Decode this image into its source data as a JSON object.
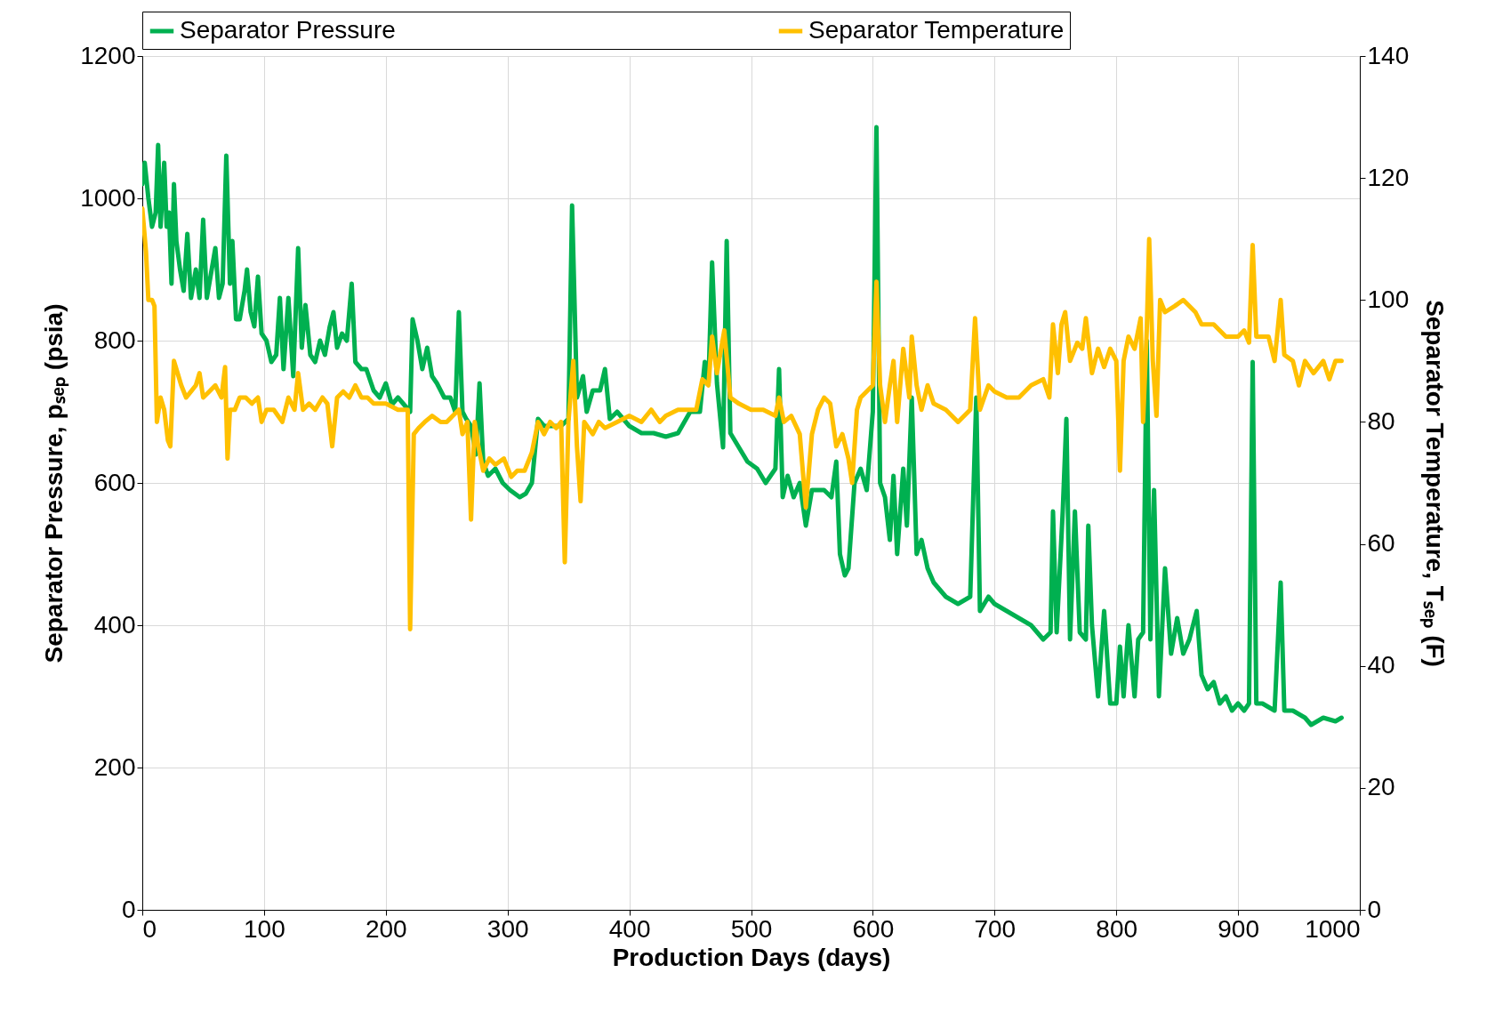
{
  "chart_data": {
    "type": "line",
    "xlabel": "Production Days (days)",
    "ylabel": "Separator Pressure, pₛₑₚ (psia)",
    "y2label": "Separator Temperature, Tₛₑₚ (F)",
    "xlim": [
      0,
      1000
    ],
    "xticks": [
      0,
      100,
      200,
      300,
      400,
      500,
      600,
      700,
      800,
      900,
      1000
    ],
    "ylim": [
      0,
      1200
    ],
    "yticks": [
      0,
      200,
      400,
      600,
      800,
      1000,
      1200
    ],
    "y2lim": [
      0,
      140
    ],
    "y2ticks": [
      0,
      20,
      40,
      60,
      80,
      100,
      120,
      140
    ],
    "grid": true,
    "legend": "top",
    "line_style": "solid",
    "marker": "none",
    "series": [
      {
        "name": "Separator Pressure",
        "color": "#00b050",
        "x": [
          0,
          2,
          5,
          8,
          11,
          13,
          15,
          18,
          20,
          22,
          24,
          26,
          28,
          31,
          34,
          37,
          40,
          44,
          47,
          50,
          53,
          57,
          60,
          63,
          66,
          69,
          72,
          74,
          77,
          80,
          84,
          86,
          89,
          92,
          95,
          98,
          102,
          106,
          110,
          113,
          116,
          120,
          124,
          128,
          131,
          134,
          138,
          142,
          146,
          150,
          154,
          157,
          160,
          164,
          168,
          172,
          175,
          180,
          184,
          190,
          195,
          200,
          205,
          210,
          215,
          220,
          222,
          226,
          230,
          234,
          238,
          242,
          248,
          253,
          257,
          260,
          263,
          266,
          270,
          274,
          277,
          280,
          284,
          290,
          296,
          302,
          310,
          315,
          320,
          325,
          330,
          338,
          344,
          350,
          353,
          357,
          362,
          365,
          370,
          376,
          380,
          384,
          390,
          400,
          410,
          420,
          430,
          440,
          450,
          458,
          462,
          465,
          468,
          472,
          477,
          480,
          483,
          490,
          497,
          505,
          512,
          520,
          523,
          526,
          530,
          535,
          540,
          545,
          550,
          560,
          566,
          570,
          573,
          577,
          580,
          585,
          590,
          595,
          600,
          603,
          606,
          610,
          614,
          617,
          620,
          625,
          628,
          632,
          636,
          640,
          645,
          650,
          660,
          670,
          680,
          685,
          688,
          695,
          700,
          710,
          720,
          730,
          740,
          746,
          748,
          751,
          756,
          759,
          762,
          766,
          770,
          775,
          777,
          780,
          785,
          790,
          795,
          800,
          803,
          806,
          810,
          815,
          818,
          822,
          825,
          828,
          831,
          835,
          840,
          845,
          850,
          855,
          860,
          866,
          870,
          875,
          880,
          885,
          890,
          895,
          900,
          905,
          909,
          912,
          915,
          920,
          930,
          935,
          938,
          945,
          955,
          960,
          970,
          980,
          985
        ],
        "values": [
          1020,
          1050,
          1000,
          960,
          980,
          1075,
          960,
          1050,
          960,
          980,
          880,
          1020,
          940,
          900,
          870,
          950,
          860,
          900,
          860,
          970,
          860,
          900,
          930,
          860,
          880,
          1060,
          880,
          940,
          830,
          830,
          870,
          900,
          840,
          820,
          890,
          810,
          800,
          770,
          780,
          860,
          760,
          860,
          750,
          930,
          790,
          850,
          780,
          770,
          800,
          780,
          820,
          840,
          790,
          810,
          800,
          880,
          770,
          760,
          760,
          730,
          720,
          740,
          710,
          720,
          710,
          700,
          830,
          800,
          760,
          790,
          750,
          740,
          720,
          720,
          700,
          840,
          700,
          690,
          680,
          640,
          740,
          630,
          610,
          620,
          600,
          590,
          580,
          585,
          600,
          690,
          680,
          680,
          680,
          690,
          990,
          720,
          750,
          700,
          730,
          730,
          760,
          690,
          700,
          680,
          670,
          670,
          665,
          670,
          700,
          700,
          770,
          740,
          910,
          740,
          650,
          940,
          670,
          650,
          630,
          620,
          600,
          620,
          760,
          580,
          610,
          580,
          600,
          540,
          590,
          590,
          580,
          630,
          500,
          470,
          480,
          600,
          620,
          590,
          700,
          1100,
          600,
          580,
          520,
          610,
          500,
          620,
          540,
          720,
          500,
          520,
          480,
          460,
          440,
          430,
          440,
          720,
          420,
          440,
          430,
          420,
          410,
          400,
          380,
          390,
          560,
          390,
          560,
          690,
          380,
          560,
          390,
          380,
          540,
          400,
          300,
          420,
          290,
          290,
          370,
          300,
          400,
          300,
          380,
          390,
          800,
          380,
          590,
          300,
          480,
          360,
          410,
          360,
          380,
          420,
          330,
          310,
          320,
          290,
          300,
          280,
          290,
          280,
          290,
          770,
          290,
          290,
          280,
          460,
          280,
          280,
          270,
          260,
          270,
          265,
          270
        ]
      },
      {
        "name": "Separator Temperature",
        "color": "#ffc000",
        "axis": "y2",
        "x": [
          0,
          3,
          5,
          8,
          10,
          12,
          15,
          18,
          21,
          23,
          26,
          29,
          32,
          36,
          40,
          44,
          47,
          50,
          55,
          60,
          65,
          68,
          70,
          72,
          76,
          80,
          85,
          90,
          95,
          98,
          102,
          108,
          115,
          120,
          125,
          128,
          132,
          137,
          142,
          148,
          152,
          156,
          160,
          165,
          170,
          175,
          180,
          185,
          190,
          200,
          210,
          218,
          220,
          223,
          227,
          232,
          238,
          245,
          250,
          255,
          260,
          263,
          267,
          270,
          273,
          276,
          280,
          285,
          290,
          297,
          303,
          308,
          314,
          320,
          325,
          330,
          335,
          340,
          344,
          347,
          350,
          354,
          357,
          360,
          363,
          370,
          375,
          380,
          390,
          400,
          410,
          418,
          425,
          430,
          440,
          450,
          455,
          460,
          465,
          468,
          472,
          478,
          483,
          490,
          500,
          510,
          520,
          523,
          527,
          533,
          540,
          545,
          550,
          555,
          560,
          565,
          570,
          575,
          580,
          583,
          587,
          590,
          600,
          603,
          606,
          610,
          614,
          617,
          620,
          625,
          630,
          632,
          636,
          640,
          645,
          650,
          660,
          670,
          680,
          684,
          688,
          695,
          700,
          710,
          720,
          730,
          740,
          745,
          748,
          752,
          755,
          758,
          762,
          768,
          772,
          775,
          780,
          785,
          790,
          795,
          800,
          803,
          806,
          810,
          815,
          820,
          822,
          825,
          827,
          830,
          833,
          836,
          840,
          848,
          855,
          865,
          870,
          880,
          890,
          900,
          905,
          909,
          912,
          915,
          925,
          930,
          935,
          938,
          945,
          950,
          955,
          962,
          970,
          975,
          980,
          985
        ],
        "values": [
          115,
          108,
          100,
          100,
          99,
          80,
          84,
          82,
          77,
          76,
          90,
          88,
          86,
          84,
          85,
          86,
          88,
          84,
          85,
          86,
          84,
          89,
          74,
          82,
          82,
          84,
          84,
          83,
          84,
          80,
          82,
          82,
          80,
          84,
          82,
          88,
          82,
          83,
          82,
          84,
          83,
          76,
          84,
          85,
          84,
          86,
          84,
          84,
          83,
          83,
          82,
          82,
          46,
          78,
          79,
          80,
          81,
          80,
          80,
          81,
          82,
          78,
          80,
          64,
          80,
          76,
          72,
          74,
          73,
          74,
          71,
          72,
          72,
          75,
          80,
          78,
          80,
          79,
          80,
          57,
          80,
          90,
          76,
          67,
          80,
          78,
          80,
          79,
          80,
          81,
          80,
          82,
          80,
          81,
          82,
          82,
          82,
          87,
          86,
          94,
          88,
          95,
          84,
          83,
          82,
          82,
          81,
          84,
          80,
          81,
          78,
          66,
          78,
          82,
          84,
          83,
          76,
          78,
          74,
          70,
          82,
          84,
          86,
          103,
          86,
          80,
          86,
          90,
          80,
          92,
          84,
          94,
          86,
          82,
          86,
          83,
          82,
          80,
          82,
          97,
          82,
          86,
          85,
          84,
          84,
          86,
          87,
          84,
          96,
          88,
          96,
          98,
          90,
          93,
          92,
          97,
          88,
          92,
          89,
          92,
          90,
          72,
          90,
          94,
          92,
          97,
          80,
          95,
          110,
          90,
          81,
          100,
          98,
          99,
          100,
          98,
          96,
          96,
          94,
          94,
          95,
          93,
          109,
          94,
          94,
          90,
          100,
          91,
          90,
          86,
          90,
          88,
          90,
          87,
          90,
          90
        ]
      }
    ]
  }
}
